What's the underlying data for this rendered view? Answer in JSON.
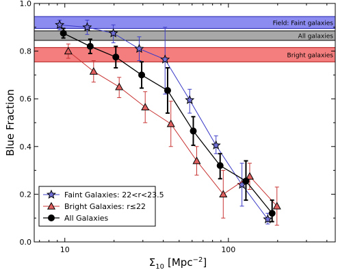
{
  "chart_data": {
    "type": "line",
    "xlabel_main": "Σ",
    "xlabel_sub": "10",
    "xlabel_unit": "[Mpc",
    "xlabel_exp": "−2",
    "xlabel_close": "]",
    "ylabel": "Blue Fraction",
    "xscale": "log",
    "xlim": [
      6.5,
      450
    ],
    "ylim": [
      0.0,
      1.0
    ],
    "xticks": [
      {
        "value": 10,
        "label": "10"
      },
      {
        "value": 100,
        "label": "100"
      }
    ],
    "yticks": [
      {
        "value": 0.0,
        "label": "0.0"
      },
      {
        "value": 0.2,
        "label": "0.2"
      },
      {
        "value": 0.4,
        "label": "0.4"
      },
      {
        "value": 0.6,
        "label": "0.6"
      },
      {
        "value": 0.8,
        "label": "0.8"
      },
      {
        "value": 1.0,
        "label": "1.0"
      }
    ],
    "bands": [
      {
        "label": "Field: Faint galaxies",
        "ymin": 0.895,
        "ymax": 0.945,
        "color": "#8c8cf0",
        "edge": "#2020b0"
      },
      {
        "label": "All galaxies",
        "ymin": 0.845,
        "ymax": 0.885,
        "color": "#a8a8a8",
        "edge": "#000000"
      },
      {
        "label": "Bright galaxies",
        "ymin": 0.755,
        "ymax": 0.815,
        "color": "#f47e7e",
        "edge": "#b01010"
      }
    ],
    "series": [
      {
        "name": "Faint Galaxies: 22<r<23.5",
        "marker": "star",
        "color": "#3c3cc8",
        "fill": "#7070d8",
        "points": [
          {
            "x": 9.3,
            "y": 0.91,
            "lo": 0.89,
            "hi": 0.93
          },
          {
            "x": 13.7,
            "y": 0.9,
            "lo": 0.87,
            "hi": 0.93
          },
          {
            "x": 19.8,
            "y": 0.875,
            "lo": 0.835,
            "hi": 0.91
          },
          {
            "x": 28.5,
            "y": 0.81,
            "lo": 0.76,
            "hi": 0.86
          },
          {
            "x": 41.0,
            "y": 0.765,
            "lo": 0.62,
            "hi": 0.9
          },
          {
            "x": 58.0,
            "y": 0.595,
            "lo": 0.54,
            "hi": 0.64
          },
          {
            "x": 84.0,
            "y": 0.405,
            "lo": 0.37,
            "hi": 0.445
          },
          {
            "x": 121.0,
            "y": 0.24,
            "lo": 0.15,
            "hi": 0.33
          },
          {
            "x": 174.0,
            "y": 0.095,
            "lo": 0.075,
            "hi": 0.12
          }
        ]
      },
      {
        "name": "Bright Galaxies: r≤22",
        "marker": "triangle",
        "color": "#c83232",
        "fill": "#e06060",
        "points": [
          {
            "x": 10.5,
            "y": 0.8,
            "lo": 0.77,
            "hi": 0.83
          },
          {
            "x": 15.0,
            "y": 0.715,
            "lo": 0.67,
            "hi": 0.76
          },
          {
            "x": 21.5,
            "y": 0.65,
            "lo": 0.605,
            "hi": 0.69
          },
          {
            "x": 31.0,
            "y": 0.565,
            "lo": 0.5,
            "hi": 0.63
          },
          {
            "x": 44.5,
            "y": 0.495,
            "lo": 0.4,
            "hi": 0.59
          },
          {
            "x": 64.0,
            "y": 0.34,
            "lo": 0.28,
            "hi": 0.4
          },
          {
            "x": 93.0,
            "y": 0.2,
            "lo": 0.1,
            "hi": 0.3
          },
          {
            "x": 135.0,
            "y": 0.275,
            "lo": 0.22,
            "hi": 0.33
          },
          {
            "x": 198.0,
            "y": 0.15,
            "lo": 0.07,
            "hi": 0.23
          }
        ]
      },
      {
        "name": "All Galaxies",
        "marker": "circle",
        "color": "#000000",
        "fill": "#000000",
        "points": [
          {
            "x": 9.8,
            "y": 0.875,
            "lo": 0.855,
            "hi": 0.895
          },
          {
            "x": 14.3,
            "y": 0.82,
            "lo": 0.79,
            "hi": 0.85
          },
          {
            "x": 20.5,
            "y": 0.775,
            "lo": 0.73,
            "hi": 0.82
          },
          {
            "x": 29.5,
            "y": 0.7,
            "lo": 0.645,
            "hi": 0.755
          },
          {
            "x": 42.5,
            "y": 0.635,
            "lo": 0.54,
            "hi": 0.73
          },
          {
            "x": 61.0,
            "y": 0.465,
            "lo": 0.405,
            "hi": 0.525
          },
          {
            "x": 89.0,
            "y": 0.32,
            "lo": 0.265,
            "hi": 0.37
          },
          {
            "x": 128.0,
            "y": 0.255,
            "lo": 0.175,
            "hi": 0.34
          },
          {
            "x": 185.0,
            "y": 0.12,
            "lo": 0.085,
            "hi": 0.175
          }
        ]
      }
    ],
    "legend_position": "lower-left"
  }
}
